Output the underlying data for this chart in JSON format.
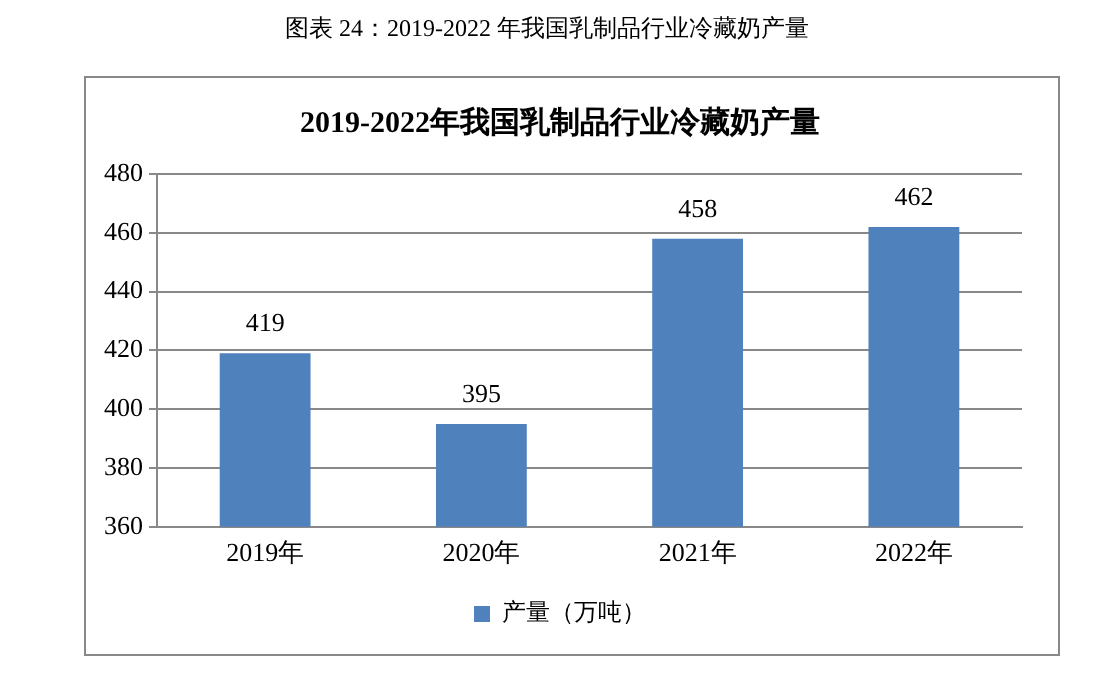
{
  "chart_data": {
    "type": "bar",
    "title": "2019-2022年我国乳制品行业冷藏奶产量",
    "annotations": [
      "图表 24：2019-2022 年我国乳制品行业冷藏奶产量"
    ],
    "categories": [
      "2019年",
      "2020年",
      "2021年",
      "2022年"
    ],
    "series": [
      {
        "name": "产量（万吨）",
        "color": "#4f81bd",
        "values": [
          419,
          395,
          458,
          462
        ]
      }
    ],
    "ylim": [
      360,
      480
    ],
    "yticks": [
      360,
      380,
      400,
      420,
      440,
      460,
      480
    ],
    "grid": "y",
    "legend": "bottom",
    "data_labels": true
  }
}
